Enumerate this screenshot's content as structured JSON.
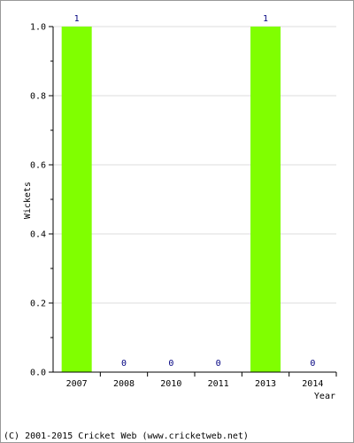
{
  "chart_data": {
    "type": "bar",
    "categories": [
      "2007",
      "2008",
      "2010",
      "2011",
      "2013",
      "2014"
    ],
    "values": [
      1,
      0,
      0,
      0,
      1,
      0
    ],
    "data_labels": [
      "1",
      "0",
      "0",
      "0",
      "1",
      "0"
    ],
    "xlabel": "Year",
    "ylabel": "Wickets",
    "ylim": [
      0,
      1.0
    ],
    "yticks": [
      "0.0",
      "0.2",
      "0.4",
      "0.6",
      "0.8",
      "1.0"
    ],
    "grid": true,
    "bar_color": "#80ff00"
  },
  "footer": "(C) 2001-2015 Cricket Web (www.cricketweb.net)"
}
